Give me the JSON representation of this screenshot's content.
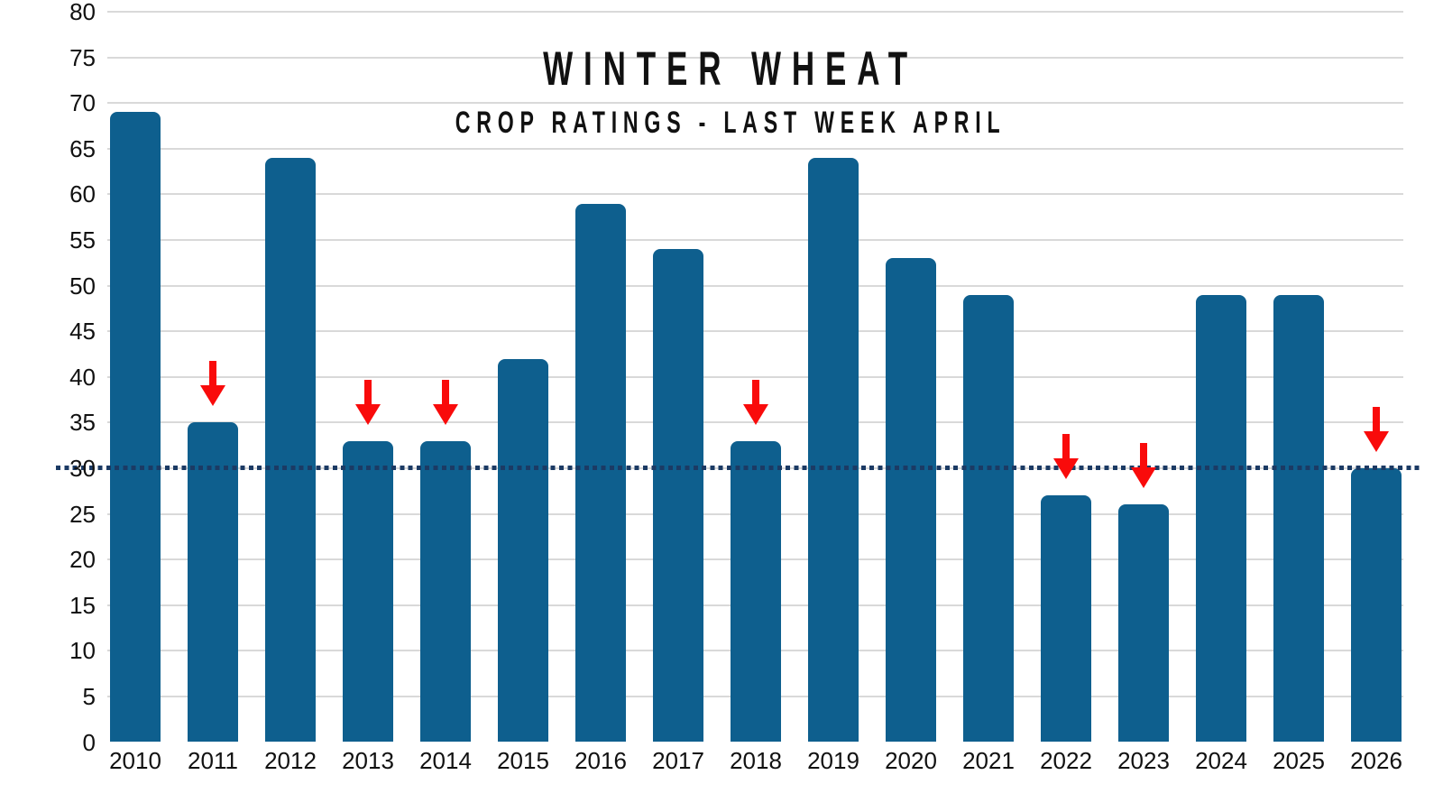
{
  "title": "WINTER WHEAT",
  "subtitle": "CROP RATINGS - LAST WEEK APRIL",
  "chart_data": {
    "type": "bar",
    "title": "WINTER WHEAT",
    "subtitle": "CROP RATINGS - LAST WEEK APRIL",
    "categories": [
      "2010",
      "2011",
      "2012",
      "2013",
      "2014",
      "2015",
      "2016",
      "2017",
      "2018",
      "2019",
      "2020",
      "2021",
      "2022",
      "2023",
      "2024",
      "2025",
      "2026"
    ],
    "values": [
      69,
      35,
      64,
      33,
      33,
      42,
      59,
      54,
      33,
      64,
      53,
      49,
      27,
      26,
      49,
      49,
      30
    ],
    "arrow_years": [
      "2011",
      "2013",
      "2014",
      "2018",
      "2022",
      "2023",
      "2026"
    ],
    "reference_line": {
      "value": 30,
      "style": "dotted"
    },
    "xlabel": "",
    "ylabel": "",
    "ylim": [
      0,
      80
    ],
    "yticks": [
      0,
      5,
      10,
      15,
      20,
      25,
      30,
      35,
      40,
      45,
      50,
      55,
      60,
      65,
      70,
      75,
      80
    ],
    "grid": true,
    "legend": "none",
    "colors": {
      "bar": "#0e5f8e",
      "arrow": "#f90b0b",
      "reference_line": "#1b3a64",
      "gridline": "#d9d9d9",
      "text": "#111111",
      "background": "#ffffff"
    }
  }
}
